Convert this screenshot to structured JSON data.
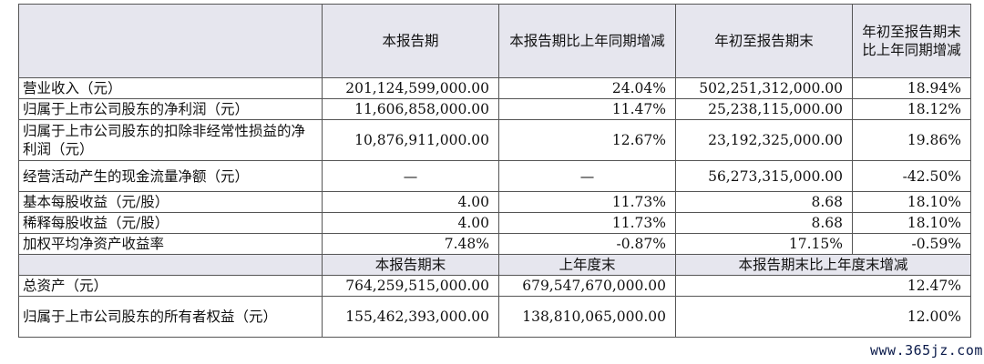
{
  "header": {
    "col1": "本报告期",
    "col2": "本报告期比上年同期增减",
    "col3": "年初至报告期末",
    "col4": "年初至报告期末比上年同期增减"
  },
  "rows": [
    {
      "label": "营业收入（元）",
      "v1": "201,124,599,000.00",
      "v2": "24.04%",
      "v3": "502,251,312,000.00",
      "v4": "18.94%"
    },
    {
      "label": "归属于上市公司股东的净利润（元）",
      "v1": "11,606,858,000.00",
      "v2": "11.47%",
      "v3": "25,238,115,000.00",
      "v4": "18.12%"
    },
    {
      "label": "归属于上市公司股东的扣除非经常性损益的净利润（元）",
      "v1": "10,876,911,000.00",
      "v2": "12.67%",
      "v3": "23,192,325,000.00",
      "v4": "19.86%"
    },
    {
      "label": "经营活动产生的现金流量净额（元）",
      "v1": "—",
      "v2": "—",
      "v3": "56,273,315,000.00",
      "v4": "-42.50%"
    },
    {
      "label": "基本每股收益（元/股）",
      "v1": "4.00",
      "v2": "11.73%",
      "v3": "8.68",
      "v4": "18.10%"
    },
    {
      "label": "稀释每股收益（元/股）",
      "v1": "4.00",
      "v2": "11.73%",
      "v3": "8.68",
      "v4": "18.10%"
    },
    {
      "label": "加权平均净资产收益率",
      "v1": "7.48%",
      "v2": "-0.87%",
      "v3": "17.15%",
      "v4": "-0.59%"
    }
  ],
  "subheader": {
    "col1": "本报告期末",
    "col2": "上年度末",
    "col3": "本报告期末比上年度末增减"
  },
  "rows2": [
    {
      "label": "总资产（元）",
      "v1": "764,259,515,000.00",
      "v2": "679,547,670,000.00",
      "v3": "12.47%"
    },
    {
      "label": "归属于上市公司股东的所有者权益（元）",
      "v1": "155,462,393,000.00",
      "v2": "138,810,065,000.00",
      "v3": "12.00%"
    }
  ],
  "watermark": "www.365jz.com"
}
